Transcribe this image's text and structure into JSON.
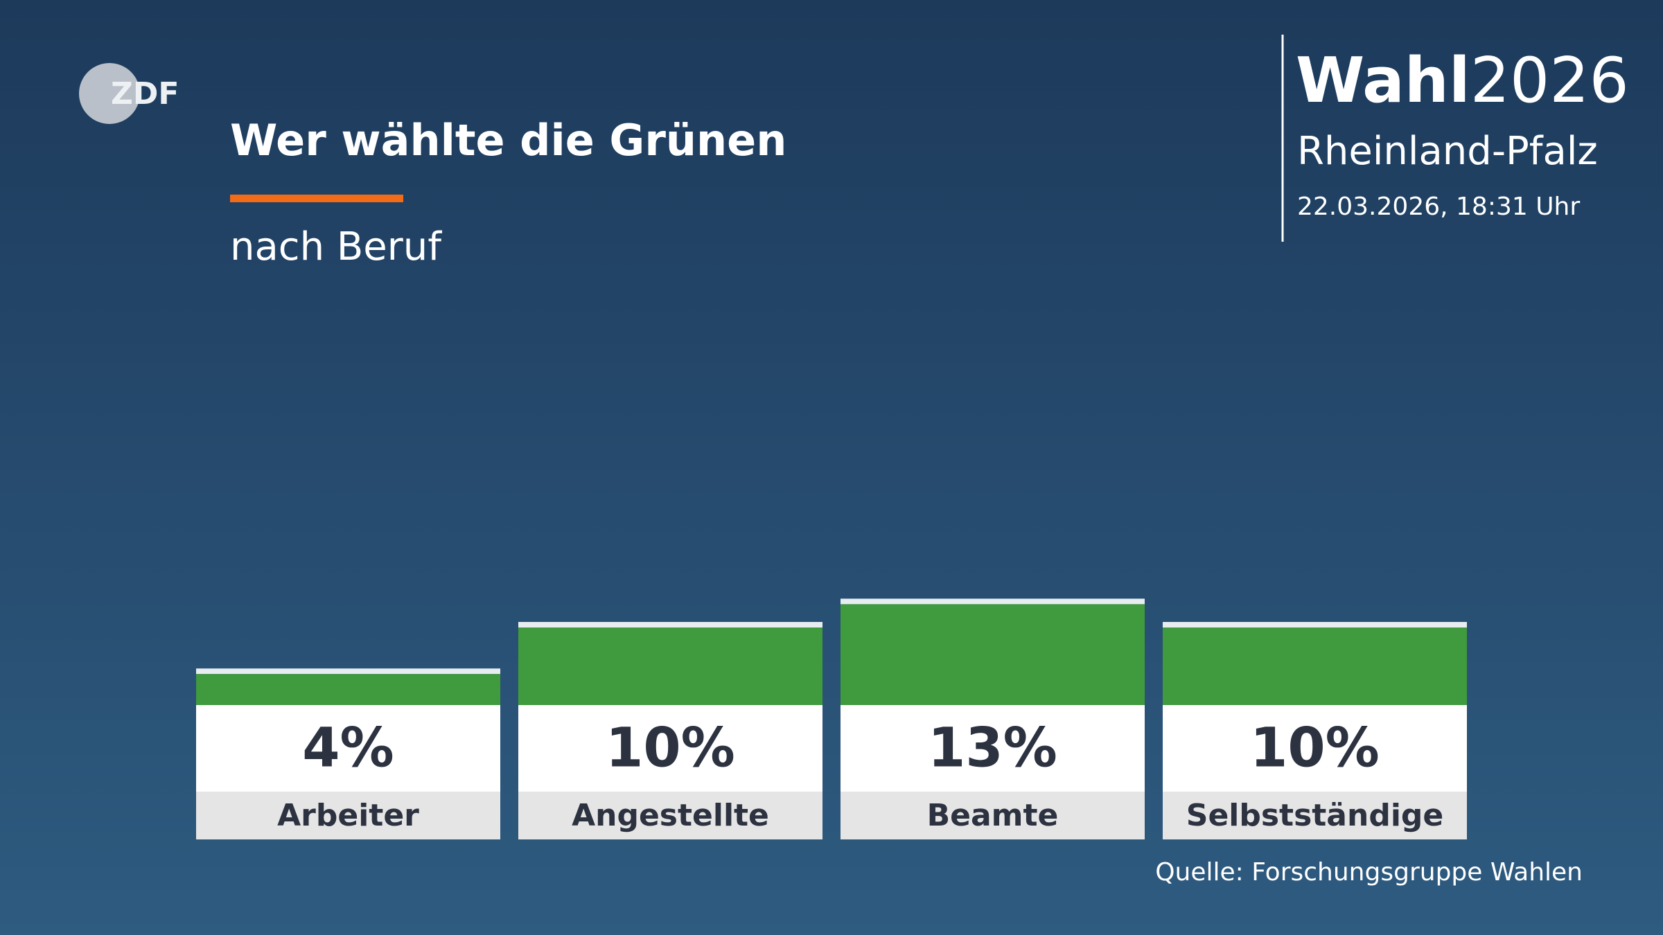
{
  "header": {
    "logo": "ZDF",
    "election": "Wahl",
    "year": "2026",
    "region": "Rheinland-Pfalz",
    "timestamp": "22.03.2026, 18:31 Uhr"
  },
  "chart_data": {
    "type": "bar",
    "title": "Wer wählte die Grünen",
    "subtitle": "nach Beruf",
    "categories": [
      "Arbeiter",
      "Angestellte",
      "Beamte",
      "Selbstständige"
    ],
    "values": [
      4,
      10,
      13,
      10
    ],
    "value_labels": [
      "4%",
      "10%",
      "13%",
      "10%"
    ],
    "color": "#409a3e",
    "source": "Quelle: Forschungsgruppe Wahlen"
  }
}
